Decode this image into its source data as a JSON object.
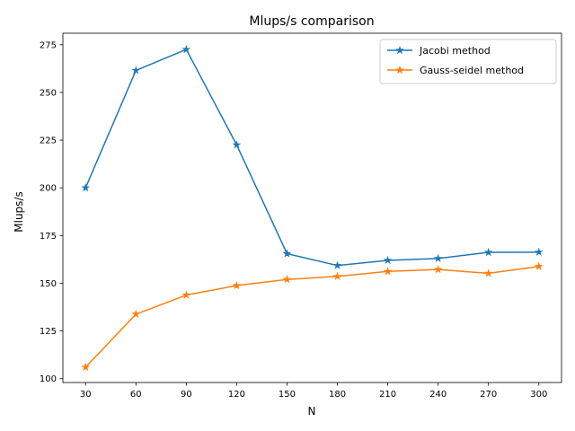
{
  "chart_data": {
    "type": "line",
    "title": "Mlups/s comparison",
    "xlabel": "N",
    "ylabel": "Mlups/s",
    "x": [
      30,
      60,
      90,
      120,
      150,
      180,
      210,
      240,
      270,
      300
    ],
    "x_ticks": [
      "30",
      "60",
      "90",
      "120",
      "150",
      "180",
      "210",
      "240",
      "270",
      "300"
    ],
    "y_ticks": [
      "100",
      "125",
      "150",
      "175",
      "200",
      "225",
      "250",
      "275"
    ],
    "ylim": [
      98,
      281
    ],
    "xlim": [
      16.5,
      313.5
    ],
    "grid": false,
    "legend_position": "top-right",
    "marker": "star",
    "series": [
      {
        "name": "Jacobi method",
        "color": "#1f77b4",
        "values": [
          200.0,
          261.5,
          272.5,
          222.5,
          165.5,
          159.3,
          162.0,
          163.0,
          166.2,
          166.3
        ]
      },
      {
        "name": "Gauss-seidel method",
        "color": "#ff7f0e",
        "values": [
          106.0,
          133.8,
          143.8,
          148.8,
          152.0,
          153.6,
          156.2,
          157.2,
          155.2,
          158.8
        ]
      }
    ]
  }
}
